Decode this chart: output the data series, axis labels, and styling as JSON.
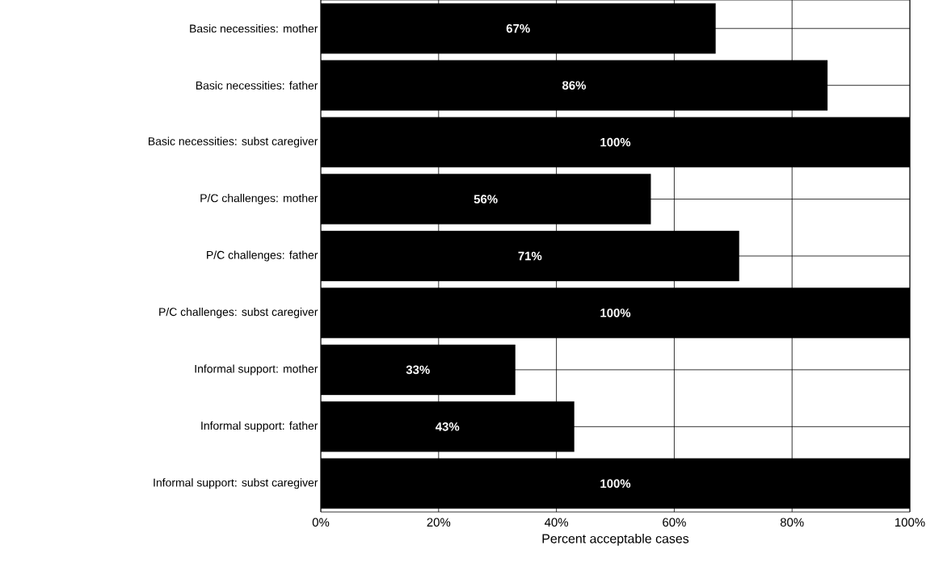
{
  "chart_data": {
    "type": "bar",
    "orientation": "horizontal",
    "categories": [
      "Basic necessities: mother",
      "Basic necessities: father",
      "Basic necessities: subst caregiver",
      "P/C challenges: mother",
      "P/C challenges: father",
      "P/C challenges: subst caregiver",
      "Informal support: mother",
      "Informal support: father",
      "Informal support: subst caregiver"
    ],
    "values": [
      67,
      86,
      100,
      56,
      71,
      100,
      33,
      43,
      100
    ],
    "value_labels": [
      "67%",
      "86%",
      "100%",
      "56%",
      "71%",
      "100%",
      "33%",
      "43%",
      "100%"
    ],
    "color": "#000000",
    "xlabel": "Percent acceptable cases",
    "xlim": [
      0,
      100
    ],
    "xticks": [
      {
        "value": 0,
        "label": "0%"
      },
      {
        "value": 20,
        "label": "20%"
      },
      {
        "value": 40,
        "label": "40%"
      },
      {
        "value": 60,
        "label": "60%"
      },
      {
        "value": 80,
        "label": "80%"
      },
      {
        "value": 100,
        "label": "100%"
      }
    ],
    "grid": true
  }
}
